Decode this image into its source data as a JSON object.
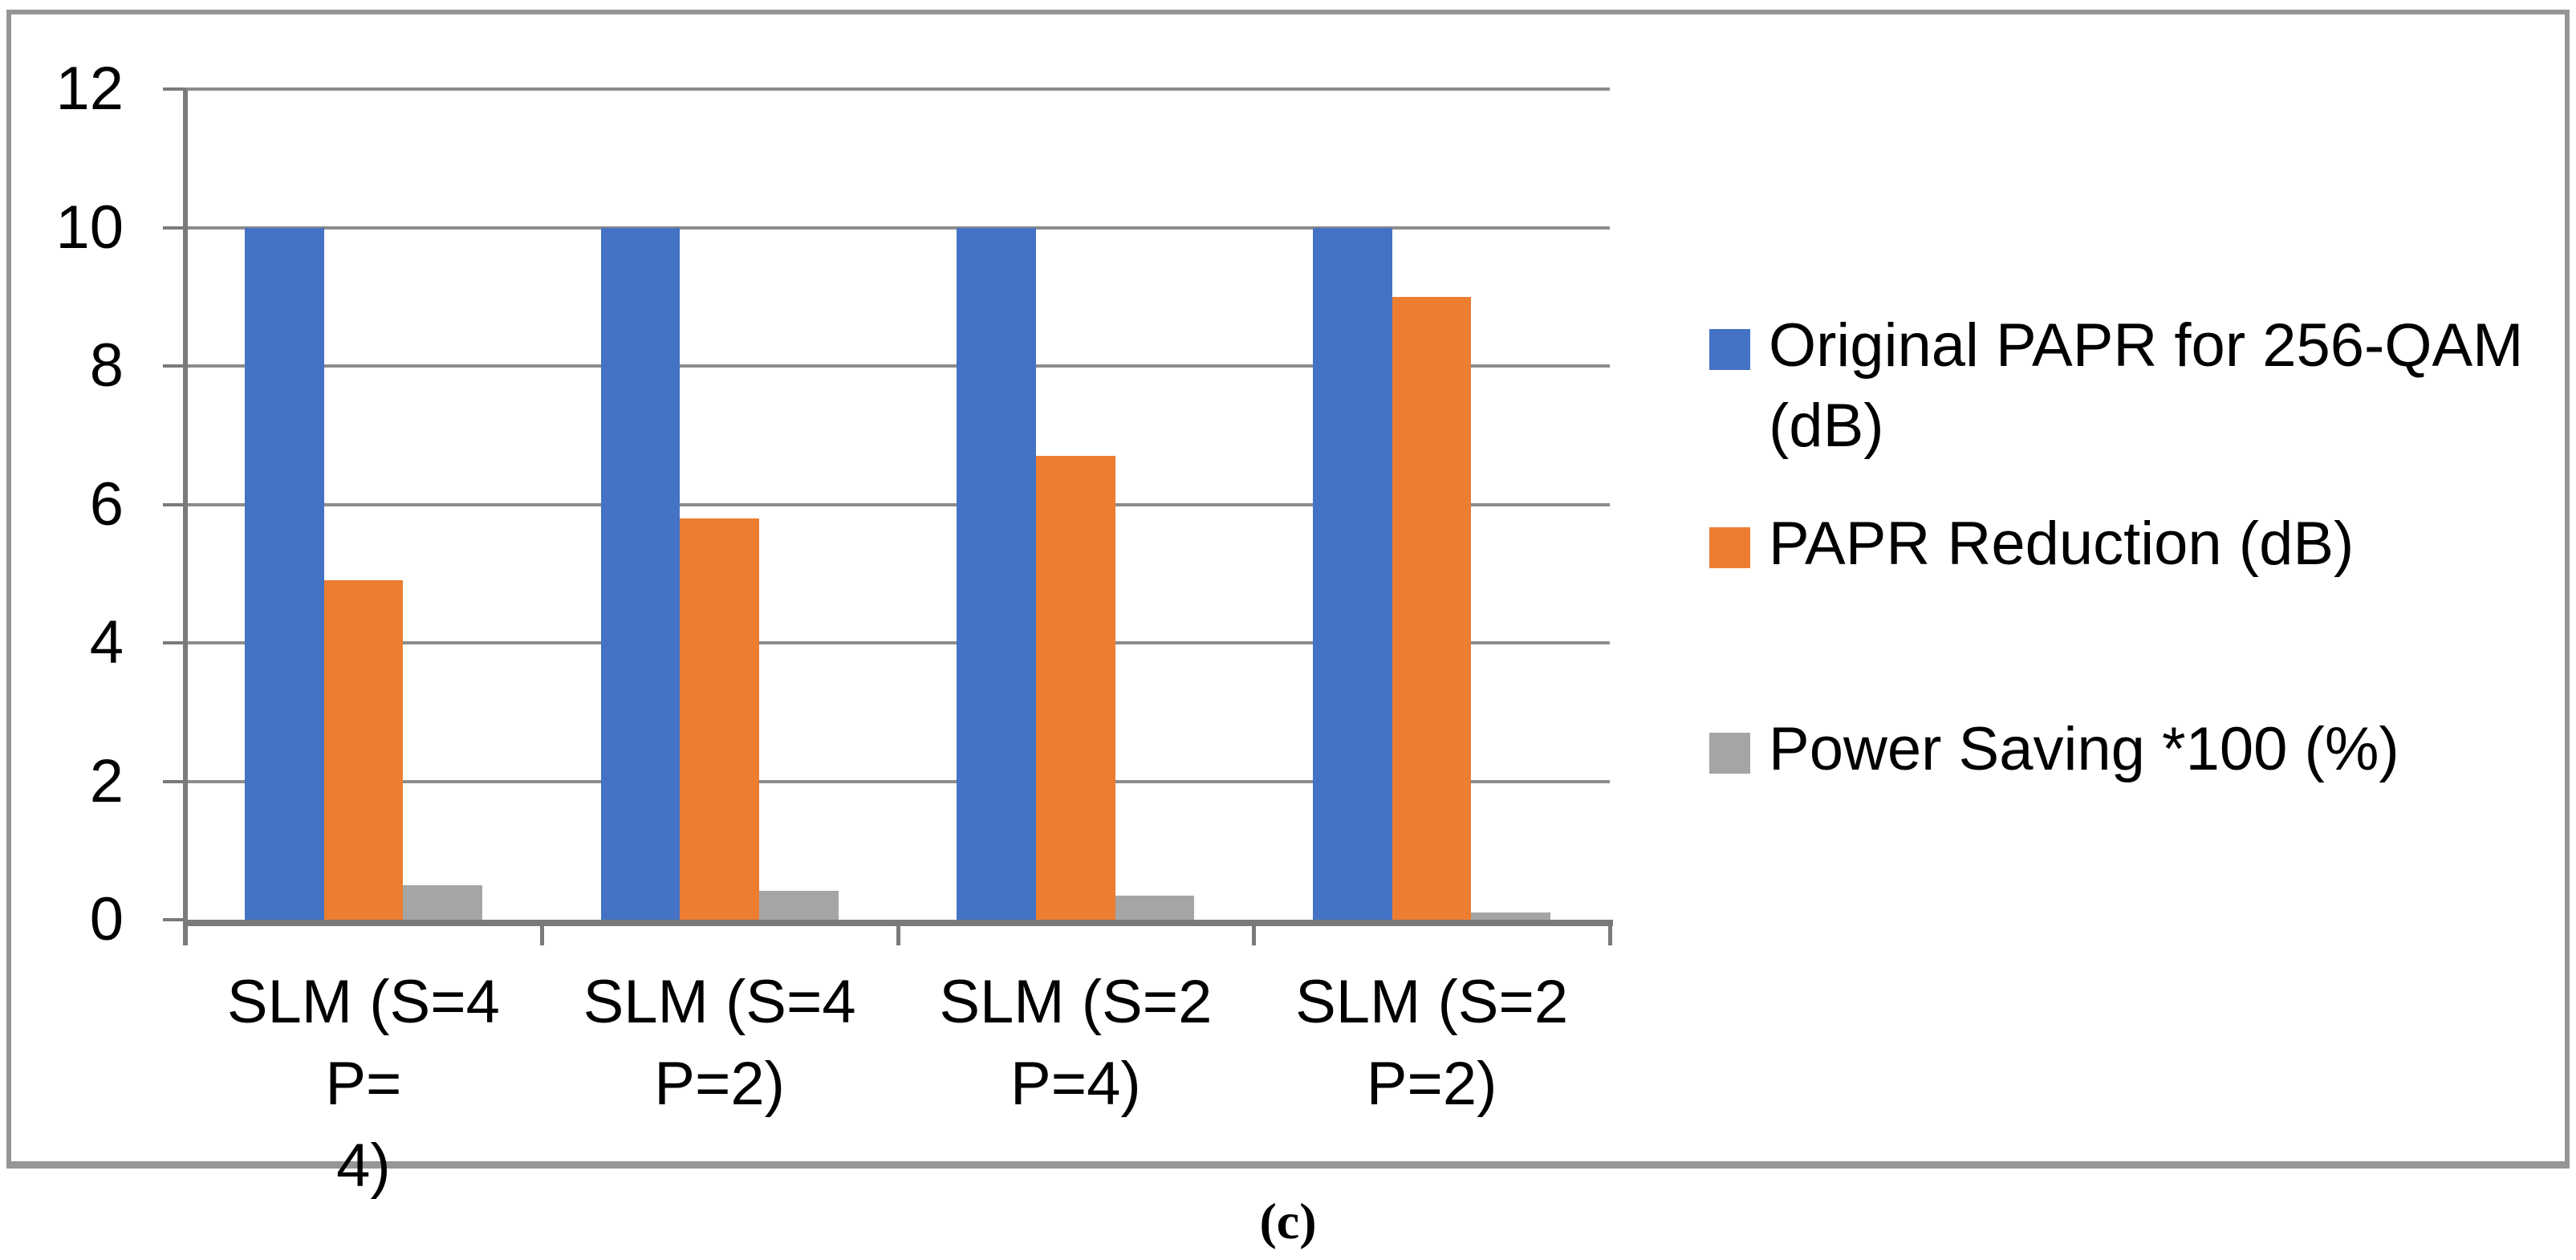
{
  "caption": "(c)",
  "chart_data": {
    "type": "bar",
    "title": "",
    "xlabel": "",
    "ylabel": "",
    "grid": true,
    "legend_position": "right",
    "ylim": [
      0,
      12
    ],
    "yticks": [
      0,
      2,
      4,
      6,
      8,
      10,
      12
    ],
    "categories": [
      "SLM (S=4 P= 4)",
      "SLM (S=4 P=2)",
      "SLM (S=2 P=4)",
      "SLM (S=2 P=2)"
    ],
    "category_label_lines": [
      [
        "SLM (S=4 P=",
        "4)"
      ],
      [
        "SLM (S=4",
        "P=2)"
      ],
      [
        "SLM (S=2",
        "P=4)"
      ],
      [
        "SLM (S=2",
        "P=2)"
      ]
    ],
    "series": [
      {
        "name": "Original PAPR for 256-QAM (dB)",
        "legend_lines": [
          "Original PAPR for 256-QAM",
          "(dB)"
        ],
        "color": "#4472C4",
        "values": [
          10,
          10,
          10,
          10
        ]
      },
      {
        "name": "PAPR Reduction (dB)",
        "legend_lines": [
          "PAPR Reduction (dB)"
        ],
        "color": "#ED7D31",
        "values": [
          4.9,
          5.8,
          6.7,
          9.0
        ]
      },
      {
        "name": "Power Saving *100 (%)",
        "legend_lines": [
          "Power Saving *100 (%)"
        ],
        "color": "#A5A5A5",
        "values": [
          0.5,
          0.42,
          0.35,
          0.1
        ]
      }
    ]
  }
}
